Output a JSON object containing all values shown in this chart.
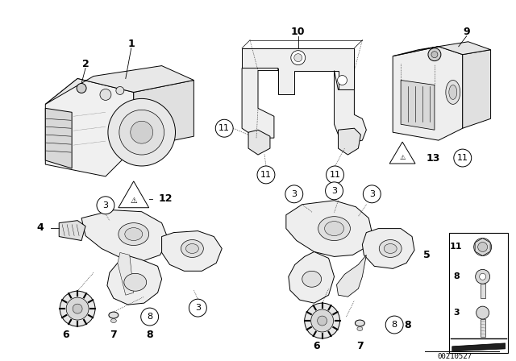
{
  "bg_color": "#ffffff",
  "diagram_id": "00210527",
  "line_color": "#000000",
  "lw": 0.7,
  "fs_label": 8,
  "fs_num": 9
}
